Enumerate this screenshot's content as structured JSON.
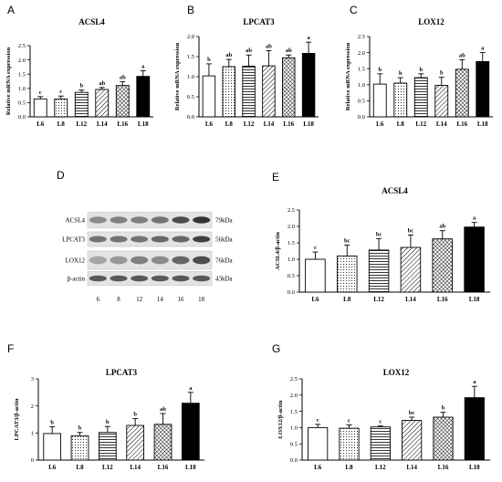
{
  "panels": [
    {
      "letter": "A",
      "title": "ACSL4",
      "ylabel": "Relative mRNA expression",
      "categories": [
        "L6",
        "L8",
        "L12",
        "L14",
        "L16",
        "L18"
      ],
      "yticks": [
        "0.0",
        "0.5",
        "1.0",
        "1.5",
        "2.0",
        "2.5"
      ],
      "ylim": [
        0,
        2.5
      ],
      "values": [
        0.63,
        0.63,
        0.86,
        0.96,
        1.1,
        1.42
      ],
      "errors": [
        0.08,
        0.1,
        0.08,
        0.07,
        0.13,
        0.2
      ],
      "letters": [
        "c",
        "c",
        "b",
        "ab",
        "ab",
        "a"
      ]
    },
    {
      "letter": "B",
      "title": "LPCAT3",
      "ylabel": "Relative mRNA expression",
      "categories": [
        "L6",
        "L8",
        "L12",
        "L14",
        "L16",
        "L18"
      ],
      "yticks": [
        "0.0",
        "0.5",
        "1.0",
        "1.5",
        "2.0"
      ],
      "ylim": [
        0,
        2.0
      ],
      "values": [
        1.02,
        1.25,
        1.26,
        1.27,
        1.47,
        1.58
      ],
      "errors": [
        0.3,
        0.18,
        0.28,
        0.38,
        0.07,
        0.28
      ],
      "letters": [
        "b",
        "ab",
        "ab",
        "ab",
        "ab",
        "a"
      ]
    },
    {
      "letter": "C",
      "title": "LOX12",
      "ylabel": "Relative mRNA expression",
      "categories": [
        "L6",
        "L8",
        "L12",
        "L14",
        "L16",
        "L18"
      ],
      "yticks": [
        "0.0",
        "0.5",
        "1.0",
        "1.5",
        "2.0",
        "2.5"
      ],
      "ylim": [
        0,
        2.5
      ],
      "values": [
        1.02,
        1.05,
        1.22,
        0.98,
        1.48,
        1.72
      ],
      "errors": [
        0.32,
        0.17,
        0.12,
        0.25,
        0.3,
        0.28
      ],
      "letters": [
        "b",
        "b",
        "b",
        "b",
        "ab",
        "a"
      ]
    },
    {
      "letter": "E",
      "title": "ACSL4",
      "ylabel": "ACSL4/β-actin",
      "categories": [
        "L6",
        "L8",
        "L12",
        "L14",
        "L16",
        "L18"
      ],
      "yticks": [
        "0.0",
        "0.5",
        "1.0",
        "1.5",
        "2.0",
        "2.5"
      ],
      "ylim": [
        0,
        2.5
      ],
      "values": [
        1.0,
        1.1,
        1.28,
        1.36,
        1.62,
        1.98
      ],
      "errors": [
        0.22,
        0.33,
        0.35,
        0.38,
        0.25,
        0.14
      ],
      "letters": [
        "c",
        "bc",
        "bc",
        "bc",
        "ab",
        "a"
      ]
    },
    {
      "letter": "F",
      "title": "LPCAT3",
      "ylabel": "LPCAT3/β-actin",
      "categories": [
        "L6",
        "L8",
        "L12",
        "L14",
        "L16",
        "L18"
      ],
      "yticks": [
        "0",
        "1",
        "2",
        "3"
      ],
      "ylim": [
        0,
        3
      ],
      "values": [
        0.98,
        0.9,
        1.02,
        1.28,
        1.32,
        2.1
      ],
      "errors": [
        0.25,
        0.12,
        0.22,
        0.25,
        0.4,
        0.4
      ],
      "letters": [
        "b",
        "b",
        "b",
        "b",
        "ab",
        "a"
      ]
    },
    {
      "letter": "G",
      "title": "LOX12",
      "ylabel": "LOX12/β-actin",
      "categories": [
        "L6",
        "L8",
        "L12",
        "L14",
        "L16",
        "L18"
      ],
      "yticks": [
        "0.0",
        "0.5",
        "1.0",
        "1.5",
        "2.0",
        "2.5"
      ],
      "ylim": [
        0,
        2.5
      ],
      "values": [
        1.0,
        0.98,
        1.02,
        1.22,
        1.32,
        1.92
      ],
      "errors": [
        0.1,
        0.1,
        0.03,
        0.1,
        0.15,
        0.35
      ],
      "letters": [
        "c",
        "c",
        "c",
        "bc",
        "b",
        "a"
      ]
    }
  ],
  "blot": {
    "letter": "D",
    "rows": [
      {
        "protein": "ACSL4",
        "size": "79kDa"
      },
      {
        "protein": "LPCAT3",
        "size": "56kDa"
      },
      {
        "protein": "LOX12",
        "size": "76kDa"
      },
      {
        "protein": "β-actin",
        "size": "43kDa"
      }
    ],
    "lanes": [
      "6",
      "8",
      "12",
      "14",
      "16",
      "18"
    ]
  },
  "chart_data": [
    {
      "type": "bar",
      "title": "ACSL4",
      "ylabel": "Relative mRNA expression",
      "categories": [
        "L6",
        "L8",
        "L12",
        "L14",
        "L16",
        "L18"
      ],
      "values": [
        0.63,
        0.63,
        0.86,
        0.96,
        1.1,
        1.42
      ],
      "errors": [
        0.08,
        0.1,
        0.08,
        0.07,
        0.13,
        0.2
      ],
      "ylim": [
        0,
        2.5
      ]
    },
    {
      "type": "bar",
      "title": "LPCAT3",
      "ylabel": "Relative mRNA expression",
      "categories": [
        "L6",
        "L8",
        "L12",
        "L14",
        "L16",
        "L18"
      ],
      "values": [
        1.02,
        1.25,
        1.26,
        1.27,
        1.47,
        1.58
      ],
      "errors": [
        0.3,
        0.18,
        0.28,
        0.38,
        0.07,
        0.28
      ],
      "ylim": [
        0,
        2.0
      ]
    },
    {
      "type": "bar",
      "title": "LOX12",
      "ylabel": "Relative mRNA expression",
      "categories": [
        "L6",
        "L8",
        "L12",
        "L14",
        "L16",
        "L18"
      ],
      "values": [
        1.02,
        1.05,
        1.22,
        0.98,
        1.48,
        1.72
      ],
      "errors": [
        0.32,
        0.17,
        0.12,
        0.25,
        0.3,
        0.28
      ],
      "ylim": [
        0,
        2.5
      ]
    },
    {
      "type": "bar",
      "title": "ACSL4",
      "ylabel": "ACSL4/β-actin",
      "categories": [
        "L6",
        "L8",
        "L12",
        "L14",
        "L16",
        "L18"
      ],
      "values": [
        1.0,
        1.1,
        1.28,
        1.36,
        1.62,
        1.98
      ],
      "errors": [
        0.22,
        0.33,
        0.35,
        0.38,
        0.25,
        0.14
      ],
      "ylim": [
        0,
        2.5
      ]
    },
    {
      "type": "bar",
      "title": "LPCAT3",
      "ylabel": "LPCAT3/β-actin",
      "categories": [
        "L6",
        "L8",
        "L12",
        "L14",
        "L16",
        "L18"
      ],
      "values": [
        0.98,
        0.9,
        1.02,
        1.28,
        1.32,
        2.1
      ],
      "errors": [
        0.25,
        0.12,
        0.22,
        0.25,
        0.4,
        0.4
      ],
      "ylim": [
        0,
        3
      ]
    },
    {
      "type": "bar",
      "title": "LOX12",
      "ylabel": "LOX12/β-actin",
      "categories": [
        "L6",
        "L8",
        "L12",
        "L14",
        "L16",
        "L18"
      ],
      "values": [
        1.0,
        0.98,
        1.02,
        1.22,
        1.32,
        1.92
      ],
      "errors": [
        0.1,
        0.1,
        0.03,
        0.1,
        0.15,
        0.35
      ],
      "ylim": [
        0,
        2.5
      ]
    }
  ]
}
